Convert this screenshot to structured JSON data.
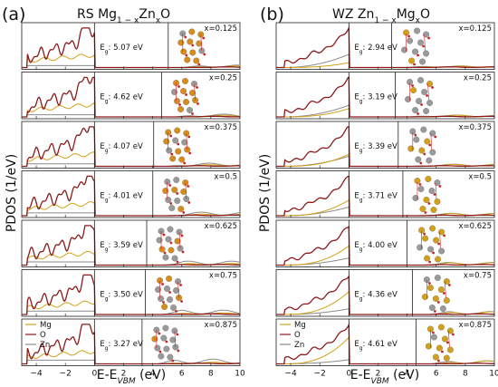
{
  "figure": {
    "ylabel": "PDOS (1/eV)",
    "xlabel_main": "E-E",
    "xlabel_sub": "VBM",
    "xlabel_unit": " (eV)"
  },
  "chart_data": [
    {
      "type": "line",
      "panel_label": "(a)",
      "title_main": "RS Mg",
      "title_sub1": "1 − x",
      "title_mid": "Zn",
      "title_sub2": "x",
      "title_end": "O",
      "xlim": [
        -5,
        10
      ],
      "xticks": [
        -4,
        -2,
        0,
        2,
        4,
        6,
        8,
        10
      ],
      "legend": [
        "Mg",
        "O",
        "Zn"
      ],
      "series_colors": {
        "Mg": "#d4a017",
        "O": "#8b1a1a",
        "Zn": "#8a8a8a"
      },
      "subplots": [
        {
          "x_label": "x=0.125",
          "gap_label": "E",
          "gap_sub": "g",
          "gap_value": ": 5.07 eV",
          "gap": 5.07
        },
        {
          "x_label": "x=0.25",
          "gap_label": "E",
          "gap_sub": "g",
          "gap_value": ": 4.62 eV",
          "gap": 4.62
        },
        {
          "x_label": "x=0.375",
          "gap_label": "E",
          "gap_sub": "g",
          "gap_value": ": 4.07 eV",
          "gap": 4.07
        },
        {
          "x_label": "x=0.5",
          "gap_label": "E",
          "gap_sub": "g",
          "gap_value": ": 4.01 eV",
          "gap": 4.01
        },
        {
          "x_label": "x=0.625",
          "gap_label": "E",
          "gap_sub": "g",
          "gap_value": ": 3.59 eV",
          "gap": 3.59
        },
        {
          "x_label": "x=0.75",
          "gap_label": "E",
          "gap_sub": "g",
          "gap_value": ": 3.50 eV",
          "gap": 3.5
        },
        {
          "x_label": "x=0.875",
          "gap_label": "E",
          "gap_sub": "g",
          "gap_value": ": 3.27 eV",
          "gap": 3.27
        }
      ]
    },
    {
      "type": "line",
      "panel_label": "(b)",
      "title_main": "WZ Zn",
      "title_sub1": "1 − x",
      "title_mid": "Mg",
      "title_sub2": "x",
      "title_end": "O",
      "xlim": [
        -5,
        10
      ],
      "xticks": [
        -4,
        -2,
        0,
        2,
        4,
        6,
        8,
        10
      ],
      "legend": [
        "Mg",
        "O",
        "Zn"
      ],
      "series_colors": {
        "Mg": "#d4a017",
        "O": "#8b1a1a",
        "Zn": "#8a8a8a"
      },
      "subplots": [
        {
          "x_label": "x=0.125",
          "gap_label": "E",
          "gap_sub": "g",
          "gap_value": ": 2.94 eV",
          "gap": 2.94
        },
        {
          "x_label": "x=0.25",
          "gap_label": "E",
          "gap_sub": "g",
          "gap_value": ": 3.19 eV",
          "gap": 3.19
        },
        {
          "x_label": "x=0.375",
          "gap_label": "E",
          "gap_sub": "g",
          "gap_value": ": 3.39 eV",
          "gap": 3.39
        },
        {
          "x_label": "x=0.5",
          "gap_label": "E",
          "gap_sub": "g",
          "gap_value": ": 3.71 eV",
          "gap": 3.71
        },
        {
          "x_label": "x=0.625",
          "gap_label": "E",
          "gap_sub": "g",
          "gap_value": ": 4.00 eV",
          "gap": 4.0
        },
        {
          "x_label": "x=0.75",
          "gap_label": "E",
          "gap_sub": "g",
          "gap_value": ": 4.36 eV",
          "gap": 4.36
        },
        {
          "x_label": "x=0.875",
          "gap_label": "E",
          "gap_sub": "g",
          "gap_value": ": 4.61 eV",
          "gap": 4.61
        }
      ]
    }
  ]
}
